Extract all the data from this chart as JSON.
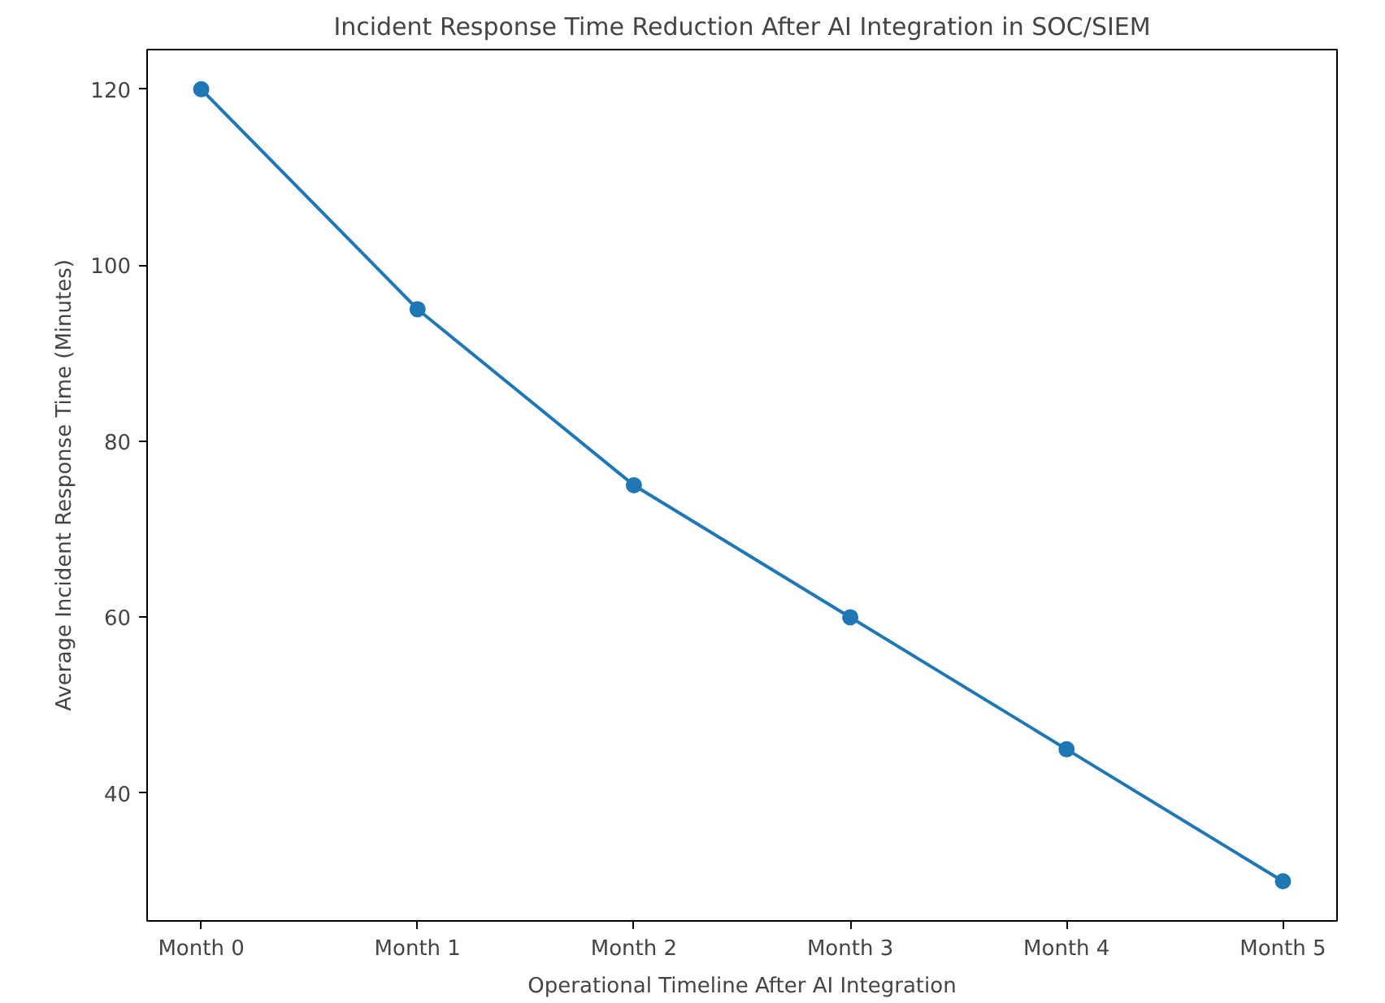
{
  "chart_data": {
    "type": "line",
    "title": "Incident Response Time Reduction After AI Integration in SOC/SIEM",
    "xlabel": "Operational Timeline After AI Integration",
    "ylabel": "Average Incident Response Time (Minutes)",
    "categories": [
      "Month 0",
      "Month 1",
      "Month 2",
      "Month 3",
      "Month 4",
      "Month 5"
    ],
    "series": [
      {
        "color": "#1f77b4",
        "values": [
          120,
          95,
          75,
          60,
          45,
          30
        ]
      }
    ],
    "ylim": [
      25.5,
      124.5
    ],
    "yticks": [
      40,
      60,
      80,
      100,
      120
    ],
    "grid": false,
    "marker": "circle",
    "line_style": "solid"
  }
}
